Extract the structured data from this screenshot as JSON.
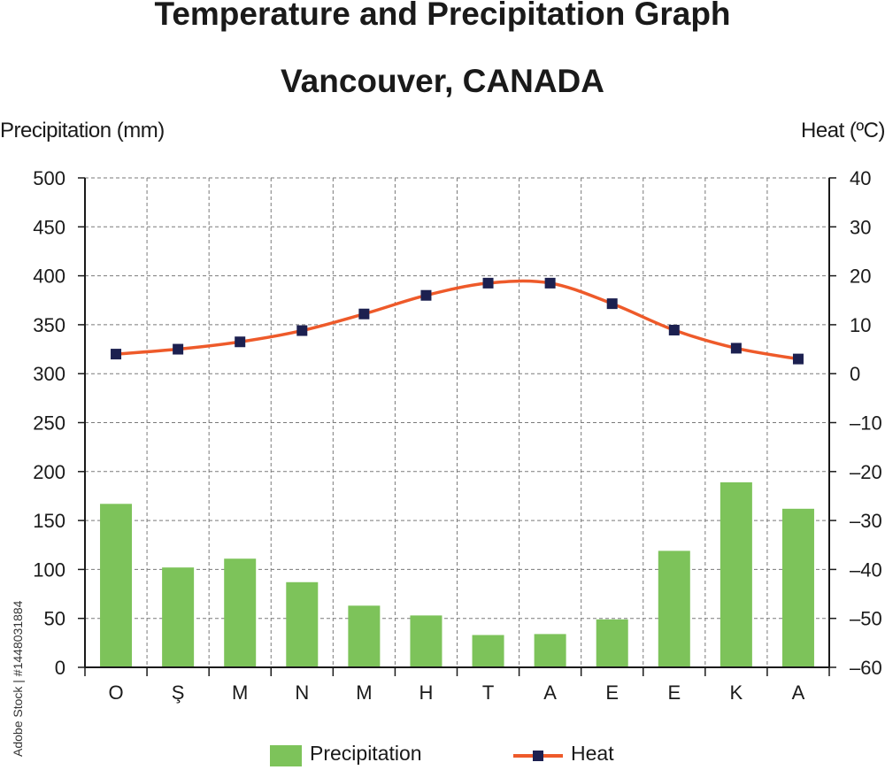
{
  "header": {
    "title": "Temperature and Precipitation Graph",
    "subtitle": "Vancouver, CANADA",
    "left_axis_title": "Precipitation (mm)",
    "right_axis_title": "Heat (ºC)"
  },
  "watermark": "Adobe Stock | #1448031884",
  "legend": {
    "precipitation_label": "Precipitation",
    "heat_label": "Heat"
  },
  "colors": {
    "bar": "#7dc35a",
    "line": "#ee5a2a",
    "marker": "#1c2050",
    "grid": "#7a7a7a"
  },
  "chart_data": {
    "type": "bar+line",
    "title": "Temperature and Precipitation Graph",
    "subtitle": "Vancouver, CANADA",
    "categories": [
      "O",
      "Ş",
      "M",
      "N",
      "M",
      "H",
      "T",
      "A",
      "E",
      "E",
      "K",
      "A"
    ],
    "series": [
      {
        "name": "Precipitation",
        "type": "bar",
        "axis": "left",
        "values": [
          167,
          102,
          111,
          87,
          63,
          53,
          33,
          34,
          49,
          119,
          189,
          162
        ]
      },
      {
        "name": "Heat",
        "type": "line",
        "axis": "right",
        "values": [
          4.0,
          5.0,
          6.5,
          8.8,
          12.2,
          16.0,
          18.5,
          18.5,
          14.3,
          8.9,
          5.2,
          3.0
        ]
      }
    ],
    "ylabel": "Precipitation (mm)",
    "y2label": "Heat (ºC)",
    "ylim": [
      0,
      500
    ],
    "y2lim": [
      -60,
      40
    ],
    "yticks": [
      0,
      50,
      100,
      150,
      200,
      250,
      300,
      350,
      400,
      450,
      500
    ],
    "y2ticks": [
      -60,
      -50,
      -40,
      -30,
      -20,
      -10,
      0,
      10,
      20,
      30,
      40
    ],
    "y2tick_labels": [
      "–60",
      "–50",
      "–40",
      "–30",
      "–20",
      "–10",
      "0",
      "10",
      "20",
      "30",
      "40"
    ],
    "grid": true,
    "legend_position": "bottom"
  }
}
